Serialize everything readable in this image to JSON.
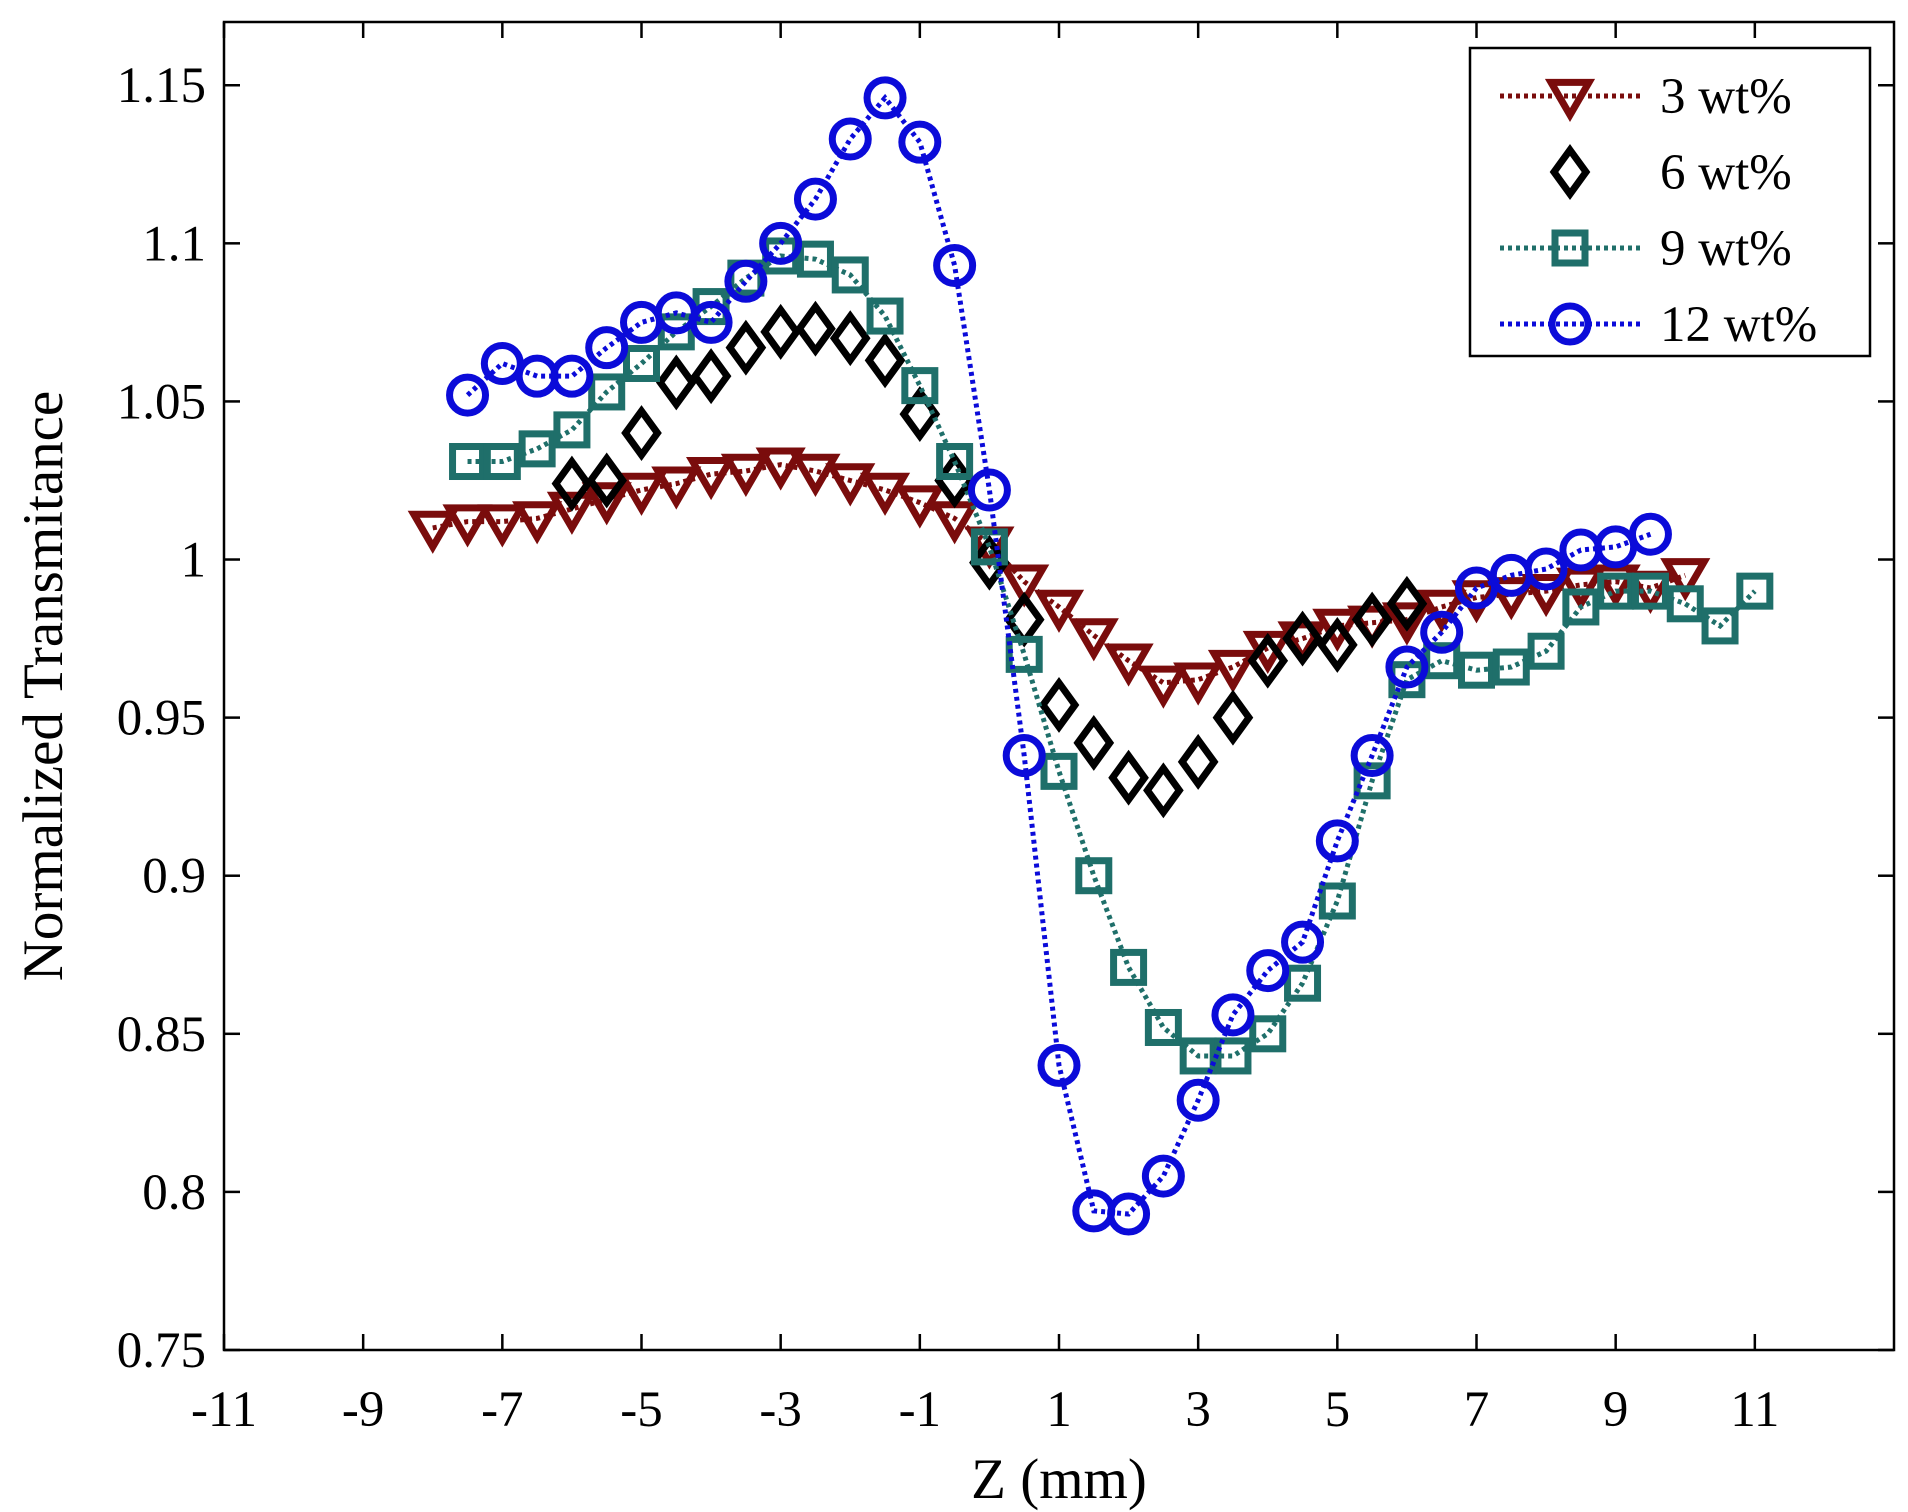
{
  "chart_data": {
    "type": "line",
    "title": "",
    "xlabel": "Z (mm)",
    "ylabel": "Normalized Transmitance",
    "xlim": [
      -11,
      13
    ],
    "ylim": [
      0.75,
      1.17
    ],
    "xticks": [
      -11,
      -9,
      -7,
      -5,
      -3,
      -1,
      1,
      3,
      5,
      7,
      9,
      11
    ],
    "yticks": [
      0.75,
      0.8,
      0.85,
      0.9,
      0.95,
      1,
      1.05,
      1.1,
      1.15
    ],
    "xtick_labels": [
      "-11",
      "-9",
      "-7",
      "-5",
      "-3",
      "-1",
      "1",
      "3",
      "5",
      "7",
      "9",
      "11"
    ],
    "ytick_labels": [
      "0.75",
      "0.8",
      "0.85",
      "0.9",
      "0.95",
      "1",
      "1.05",
      "1.1",
      "1.15"
    ],
    "grid": false,
    "legend_position": "top-right",
    "series": [
      {
        "name": "3 wt%",
        "color": "#7a0c0c",
        "marker": "triangle-down",
        "line": "dotted",
        "x": [
          -8,
          -7.5,
          -7,
          -6.5,
          -6,
          -5.5,
          -5,
          -4.5,
          -4,
          -3.5,
          -3,
          -2.5,
          -2,
          -1.5,
          -1,
          -0.5,
          0,
          0.5,
          1,
          1.5,
          2,
          2.5,
          3,
          3.5,
          4,
          4.5,
          5,
          5.5,
          6,
          6.5,
          7,
          7.5,
          8,
          8.5,
          9,
          9.5,
          10
        ],
        "y": [
          1.01,
          1.012,
          1.012,
          1.013,
          1.016,
          1.019,
          1.022,
          1.024,
          1.027,
          1.028,
          1.03,
          1.028,
          1.025,
          1.022,
          1.018,
          1.013,
          1.005,
          0.993,
          0.985,
          0.976,
          0.968,
          0.961,
          0.962,
          0.966,
          0.972,
          0.975,
          0.979,
          0.98,
          0.981,
          0.985,
          0.988,
          0.989,
          0.99,
          0.992,
          0.993,
          0.991,
          0.995
        ]
      },
      {
        "name": "6 wt%",
        "color": "#000000",
        "marker": "diamond",
        "line": "none",
        "x": [
          -6,
          -5.5,
          -5,
          -4.5,
          -4,
          -3.5,
          -3,
          -2.5,
          -2,
          -1.5,
          -1,
          -0.5,
          0,
          0.5,
          1,
          1.5,
          2,
          2.5,
          3,
          3.5,
          4,
          4.5,
          5,
          5.5,
          6
        ],
        "y": [
          1.024,
          1.025,
          1.04,
          1.056,
          1.058,
          1.067,
          1.072,
          1.073,
          1.07,
          1.063,
          1.046,
          1.025,
          0.999,
          0.981,
          0.954,
          0.942,
          0.931,
          0.927,
          0.936,
          0.95,
          0.968,
          0.975,
          0.973,
          0.981,
          0.986
        ]
      },
      {
        "name": "9 wt%",
        "color": "#1f6f6a",
        "marker": "square",
        "line": "dotted",
        "x": [
          -7.5,
          -7,
          -6.5,
          -6,
          -5.5,
          -5,
          -4.5,
          -4,
          -3.5,
          -3,
          -2.5,
          -2,
          -1.5,
          -1,
          -0.5,
          0,
          0.5,
          1,
          1.5,
          2,
          2.5,
          3,
          3.5,
          4,
          4.5,
          5,
          5.5,
          6,
          6.5,
          7,
          7.5,
          8,
          8.5,
          9,
          9.5,
          10,
          10.5,
          11
        ],
        "y": [
          1.031,
          1.031,
          1.035,
          1.041,
          1.053,
          1.062,
          1.072,
          1.08,
          1.089,
          1.096,
          1.095,
          1.09,
          1.077,
          1.055,
          1.031,
          1.004,
          0.97,
          0.933,
          0.9,
          0.871,
          0.852,
          0.843,
          0.843,
          0.85,
          0.866,
          0.892,
          0.93,
          0.962,
          0.968,
          0.965,
          0.966,
          0.971,
          0.985,
          0.99,
          0.99,
          0.986,
          0.979,
          0.99
        ]
      },
      {
        "name": "12 wt%",
        "color": "#0b0bd9",
        "marker": "circle",
        "line": "dotted",
        "x": [
          -7.5,
          -7,
          -6.5,
          -6,
          -5.5,
          -5,
          -4.5,
          -4,
          -3.5,
          -3,
          -2.5,
          -2,
          -1.5,
          -1,
          -0.5,
          0,
          0.5,
          1,
          1.5,
          2,
          2.5,
          3,
          3.5,
          4,
          4.5,
          5,
          5.5,
          6,
          6.5,
          7,
          7.5,
          8,
          8.5,
          9,
          9.5
        ],
        "y": [
          1.052,
          1.062,
          1.058,
          1.058,
          1.067,
          1.075,
          1.078,
          1.075,
          1.088,
          1.1,
          1.114,
          1.133,
          1.146,
          1.132,
          1.093,
          1.022,
          0.938,
          0.84,
          0.794,
          0.793,
          0.805,
          0.829,
          0.856,
          0.87,
          0.879,
          0.911,
          0.938,
          0.966,
          0.977,
          0.991,
          0.995,
          0.997,
          1.003,
          1.004,
          1.008
        ]
      }
    ]
  }
}
